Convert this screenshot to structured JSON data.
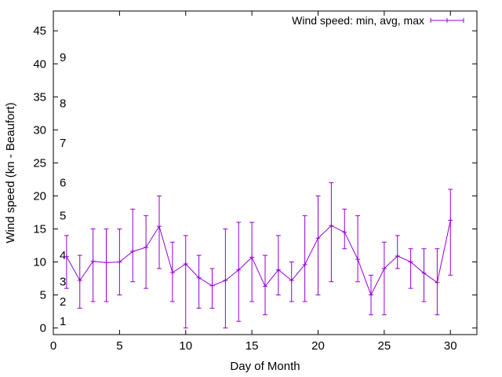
{
  "chart_data": {
    "type": "line",
    "xlabel": "Day of Month",
    "ylabel": "Wind speed (kn - Beaufort)",
    "xlim": [
      0,
      32
    ],
    "ylim": [
      -1,
      48
    ],
    "xticks": [
      0,
      5,
      10,
      15,
      20,
      25,
      30
    ],
    "yticks": [
      0,
      5,
      10,
      15,
      20,
      25,
      30,
      35,
      40,
      45
    ],
    "grid": false,
    "legend_position": "top-right",
    "colors": {
      "series": "#9400d3",
      "axes": "#000000"
    },
    "beaufort_labels": [
      {
        "label": "1",
        "y": 1
      },
      {
        "label": "2",
        "y": 4
      },
      {
        "label": "3",
        "y": 7
      },
      {
        "label": "4",
        "y": 11
      },
      {
        "label": "5",
        "y": 17
      },
      {
        "label": "6",
        "y": 22
      },
      {
        "label": "7",
        "y": 28
      },
      {
        "label": "8",
        "y": 34
      },
      {
        "label": "9",
        "y": 41
      }
    ],
    "series": [
      {
        "name": "Wind speed: min, avg, max",
        "x": [
          1,
          2,
          3,
          4,
          5,
          6,
          7,
          8,
          9,
          10,
          11,
          12,
          13,
          14,
          15,
          16,
          17,
          18,
          19,
          20,
          21,
          22,
          23,
          24,
          25,
          26,
          27,
          28,
          29,
          30
        ],
        "min": [
          6,
          3,
          4,
          4,
          5,
          7,
          6,
          9,
          4,
          0,
          3,
          3,
          0,
          1,
          4,
          2,
          5,
          4,
          4,
          5,
          7,
          12,
          7,
          2,
          2,
          9,
          6,
          4,
          2,
          8
        ],
        "avg": [
          10.8,
          7.2,
          10.1,
          9.9,
          10.0,
          11.6,
          12.2,
          15.4,
          8.4,
          9.7,
          7.6,
          6.4,
          7.2,
          8.8,
          10.7,
          6.3,
          8.8,
          7.2,
          9.6,
          13.6,
          15.5,
          14.5,
          10.4,
          5.0,
          9.0,
          10.9,
          10.0,
          8.3,
          6.9,
          16.3
        ],
        "max": [
          14,
          11,
          15,
          15,
          15,
          18,
          17,
          20,
          13,
          14,
          11,
          9,
          15,
          16,
          16,
          11,
          14,
          10,
          17,
          20,
          22,
          18,
          17,
          8,
          13,
          14,
          12,
          12,
          12,
          21
        ]
      }
    ]
  }
}
